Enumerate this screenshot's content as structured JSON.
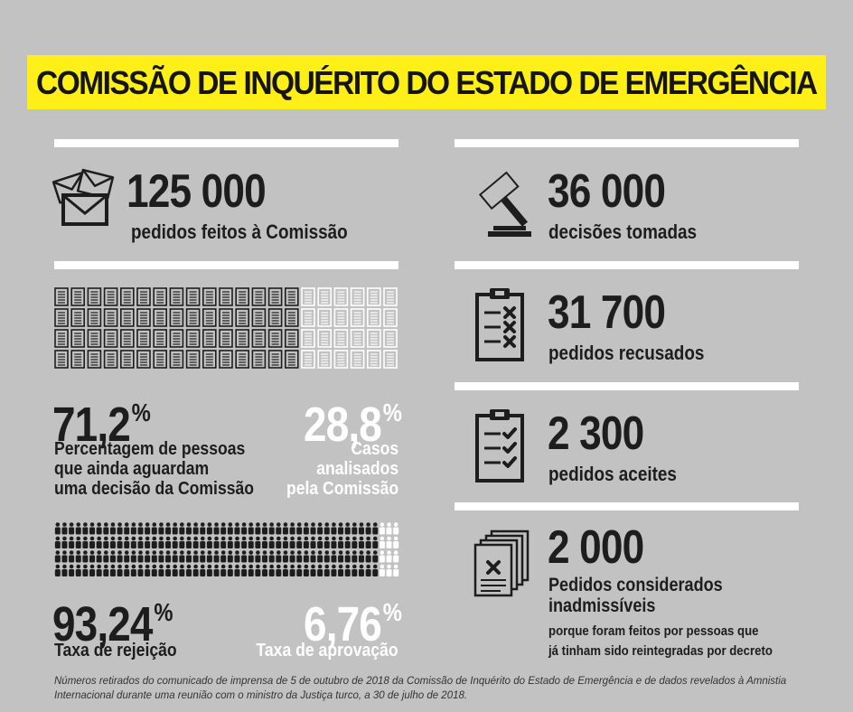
{
  "title": "COMISSÃO DE INQUÉRITO DO ESTADO DE EMERGÊNCIA",
  "left": {
    "requests": {
      "value": "125 000",
      "label": "pedidos feitos à Comissão",
      "icon": "envelopes-icon"
    },
    "documents_grid": {
      "total": 84,
      "dark": 59,
      "icon": "document-icon"
    },
    "awaiting": {
      "value": "71,2",
      "unit": "%",
      "label_lines": [
        "Percentagem de pessoas",
        "que ainda aguardam",
        "uma decisão da Comissão"
      ]
    },
    "analysed": {
      "value": "28,8",
      "unit": "%",
      "label_lines": [
        "Casos",
        "analisados",
        "pela Comissão"
      ]
    },
    "people_grid": {
      "total": 200,
      "dark": 187,
      "icon": "person-icon"
    },
    "rejection": {
      "value": "93,24",
      "unit": "%",
      "label": "Taxa de rejeição"
    },
    "approval": {
      "value": "6,76",
      "unit": "%",
      "label": "Taxa de aprovação"
    }
  },
  "right": {
    "decisions": {
      "value": "36 000",
      "label": "decisões tomadas",
      "icon": "gavel-icon"
    },
    "refused": {
      "value": "31 700",
      "label": "pedidos recusados",
      "icon": "clipboard-x-icon"
    },
    "accepted": {
      "value": "2 300",
      "label": "pedidos aceites",
      "icon": "clipboard-check-icon"
    },
    "inadmissible": {
      "value": "2 000",
      "label_lines": [
        "Pedidos considerados",
        "inadmissíveis"
      ],
      "note_lines": [
        "porque foram feitos por pessoas que",
        "já tinham sido reintegradas por decreto"
      ],
      "icon": "document-stack-icon"
    }
  },
  "footnote_lines": [
    "Números retirados do comunicado de imprensa de 5 de outubro de 2018 da Comissão de Inquérito do Estado de Emergência e de dados revelados à Amnistia",
    "Internacional durante uma reunião com o ministro da Justiça turco, a 30 de julho de 2018."
  ],
  "colors": {
    "banner": "#ffef18",
    "background": "#c2c2c2",
    "dark": "#1d1d1d",
    "light": "#ffffff"
  }
}
